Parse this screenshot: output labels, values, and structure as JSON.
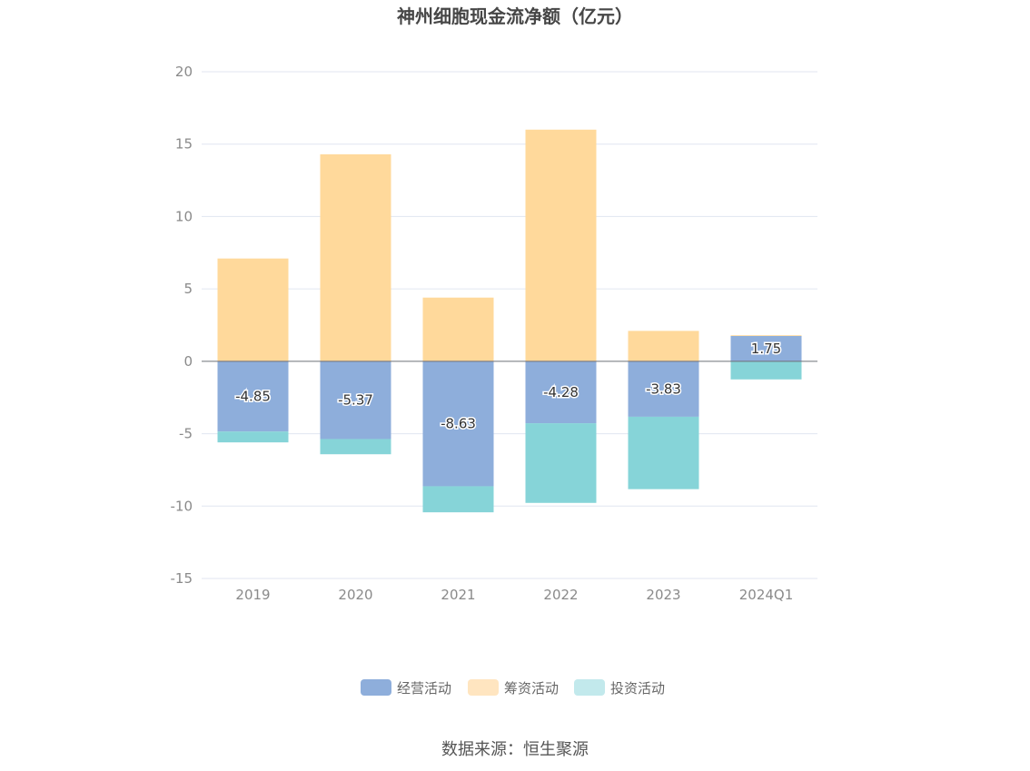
{
  "chart_data": {
    "type": "bar",
    "stacked": true,
    "title": "神州细胞现金流净额（亿元）",
    "categories": [
      "2019",
      "2020",
      "2021",
      "2022",
      "2023",
      "2024Q1"
    ],
    "series": [
      {
        "name": "经营活动",
        "color": "#8eaedb",
        "values": [
          -4.85,
          -5.37,
          -8.63,
          -4.28,
          -3.83,
          1.75
        ],
        "labels": [
          "-4.85",
          "-5.37",
          "-8.63",
          "-4.28",
          "-3.83",
          "1.75"
        ]
      },
      {
        "name": "筹资活动",
        "color": "#ffd99b",
        "values": [
          7.1,
          14.3,
          4.4,
          16.0,
          2.1,
          0.05
        ]
      },
      {
        "name": "投资活动",
        "color": "#86d4d8",
        "values": [
          -0.75,
          -1.05,
          -1.8,
          -5.5,
          -5.0,
          -1.25
        ]
      }
    ],
    "yticks": [
      "20",
      "15",
      "10",
      "5",
      "0",
      "-5",
      "-10",
      "-15"
    ],
    "ylim": [
      -15,
      20
    ],
    "grid": true,
    "legend": "bottom-center"
  },
  "legend_colors": [
    "#8eaedb",
    "#ffe5c0",
    "#c2e9ec"
  ],
  "source": "数据来源：恒生聚源"
}
